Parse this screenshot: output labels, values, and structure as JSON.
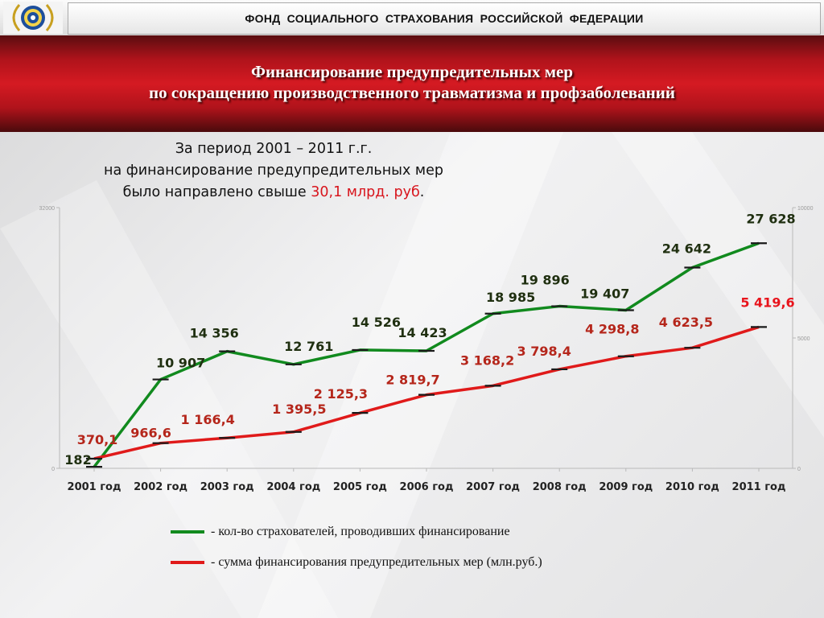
{
  "header": {
    "org_title": "ФОНД  СОЦИАЛЬНОГО  СТРАХОВАНИЯ  РОССИЙСКОЙ  ФЕДЕРАЦИИ"
  },
  "banner": {
    "line1": "Финансирование предупредительных мер",
    "line2": "по сокращению производственного травматизма и профзаболеваний"
  },
  "summary": {
    "line1": "За период 2001 – 2011 г.г.",
    "line2": "на финансирование предупредительных мер",
    "line3_prefix": "было направлено свыше ",
    "line3_highlight": "30,1 млрд. руб",
    "line3_suffix": "."
  },
  "colors": {
    "green": "#118a1e",
    "red": "#e01a1a",
    "label_green": "#1f2f10",
    "label_red": "#b5261b",
    "highlight_red": "#e8141c"
  },
  "chart_data": {
    "type": "line",
    "categories": [
      "2001 год",
      "2002 год",
      "2003 год",
      "2004 год",
      "2005 год",
      "2006 год",
      "2007 год",
      "2008 год",
      "2009 год",
      "2010 год",
      "2011 год"
    ],
    "y_left": {
      "min": 0,
      "max": 32000,
      "ticks": [
        "0",
        "32000"
      ]
    },
    "y_right": {
      "min": 0,
      "max": 10000,
      "ticks": [
        "0",
        "5000",
        "10000"
      ]
    },
    "series": [
      {
        "name": "- кол-во страхователей, проводивших финансирование",
        "axis": "left",
        "color": "#118a1e",
        "values": [
          182,
          10907,
          14356,
          12761,
          14526,
          14423,
          18985,
          19896,
          19407,
          24642,
          27628
        ],
        "labels": [
          "182",
          "10 907",
          "14 356",
          "12 761",
          "14 526",
          "14 423",
          "18 985",
          "19 896",
          "19 407",
          "24 642",
          "27 628"
        ]
      },
      {
        "name": "- сумма финансирования предупредительных мер (млн.руб.)",
        "axis": "right",
        "color": "#e01a1a",
        "values": [
          370.1,
          966.6,
          1166.4,
          1395.5,
          2125.3,
          2819.7,
          3168.2,
          3798.4,
          4298.8,
          4623.5,
          5419.6
        ],
        "labels": [
          "370,1",
          "966,6",
          "1 166,4",
          "1 395,5",
          "2 125,3",
          "2 819,7",
          "3 168,2",
          "3 798,4",
          "4 298,8",
          "4 623,5",
          "5 419,6"
        ]
      }
    ],
    "legend_position": "bottom",
    "grid": false
  }
}
